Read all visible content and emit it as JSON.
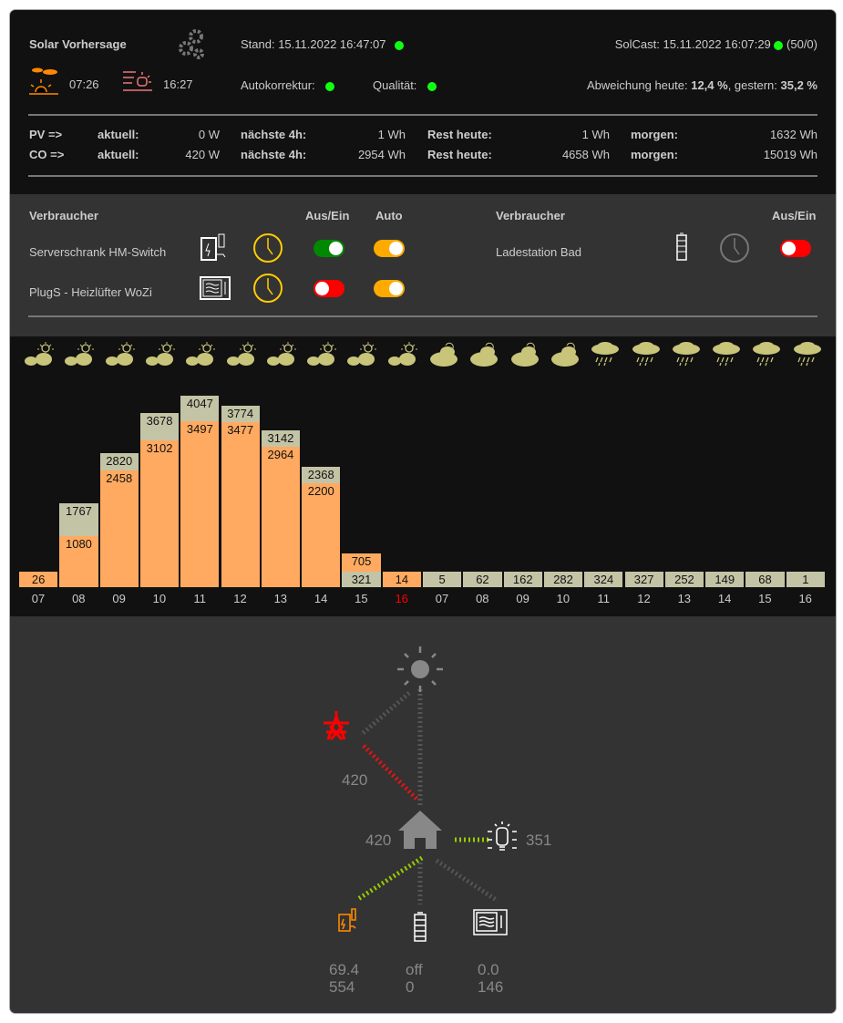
{
  "header": {
    "title": "Solar Vorhersage",
    "stand": "Stand: 15.11.2022 16:47:07",
    "solcast": "SolCast: 15.11.2022 16:07:29",
    "solcast_count": "(50/0)",
    "sunrise": "07:26",
    "sunset": "16:27",
    "autokorrektur": "Autokorrektur:",
    "qualitaet": "Qualität:",
    "abw_label": "Abweichung heute: ",
    "abw_today": "12,4 %",
    "abw_mid": ", gestern: ",
    "abw_yesterday": "35,2 %",
    "status_color": "#22ee22"
  },
  "summary": [
    {
      "label": "PV =>",
      "aktuell_l": "aktuell:",
      "aktuell": "0 W",
      "n4_l": "nächste 4h:",
      "n4": "1 Wh",
      "rest_l": "Rest heute:",
      "rest": "1 Wh",
      "morgen_l": "morgen:",
      "morgen": "1632 Wh"
    },
    {
      "label": "CO =>",
      "aktuell_l": "aktuell:",
      "aktuell": "420 W",
      "n4_l": "nächste 4h:",
      "n4": "2954 Wh",
      "rest_l": "Rest heute:",
      "rest": "4658 Wh",
      "morgen_l": "morgen:",
      "morgen": "15019 Wh"
    }
  ],
  "consumers": {
    "col_name": "Verbraucher",
    "col_onoff": "Aus/Ein",
    "col_auto": "Auto",
    "items": [
      {
        "name": "Serverschrank HM-Switch",
        "icon": "charging-station-icon",
        "clock": "active",
        "on": true,
        "auto": true
      },
      {
        "name": "PlugS - Heizlüfter WoZi",
        "icon": "microwave-icon",
        "clock": "active",
        "on": false,
        "auto": true
      },
      {
        "name": "Ladestation Bad",
        "icon": "battery-icon",
        "clock": "inactive",
        "on": false,
        "auto": true
      }
    ]
  },
  "chart_data": {
    "type": "bar",
    "colors": {
      "actual": "#ffaa60",
      "forecast": "#c3c4a6",
      "today_current_hour": "#ff0000"
    },
    "weather": [
      "partly-cloudy",
      "partly-cloudy",
      "partly-cloudy",
      "partly-cloudy",
      "partly-cloudy",
      "partly-cloudy",
      "partly-cloudy",
      "partly-cloudy",
      "partly-cloudy",
      "partly-cloudy",
      "cloudy",
      "cloudy",
      "cloudy",
      "cloudy",
      "rain",
      "rain",
      "rain",
      "rain",
      "rain",
      "rain"
    ],
    "categories": [
      "07",
      "08",
      "09",
      "10",
      "11",
      "12",
      "13",
      "14",
      "15",
      "16",
      "07",
      "08",
      "09",
      "10",
      "11",
      "12",
      "13",
      "14",
      "15",
      "16"
    ],
    "series": [
      {
        "name": "actual",
        "values": [
          26,
          1080,
          2458,
          3102,
          3497,
          3477,
          2964,
          2200,
          705,
          14,
          null,
          null,
          null,
          null,
          null,
          null,
          null,
          null,
          null,
          null
        ]
      },
      {
        "name": "forecast",
        "values": [
          null,
          1767,
          2820,
          3678,
          4047,
          3774,
          3142,
          2368,
          321,
          null,
          5,
          62,
          162,
          282,
          324,
          327,
          252,
          149,
          68,
          1
        ]
      }
    ]
  },
  "flow": {
    "grid": "420",
    "house": "420",
    "light": "351",
    "charger": [
      "69.4",
      "554"
    ],
    "battery": [
      "off",
      "0"
    ],
    "heater": [
      "0.0",
      "146"
    ],
    "colors": {
      "import": "#ee1111",
      "consume": "#99cc00",
      "idle": "#555555"
    }
  }
}
